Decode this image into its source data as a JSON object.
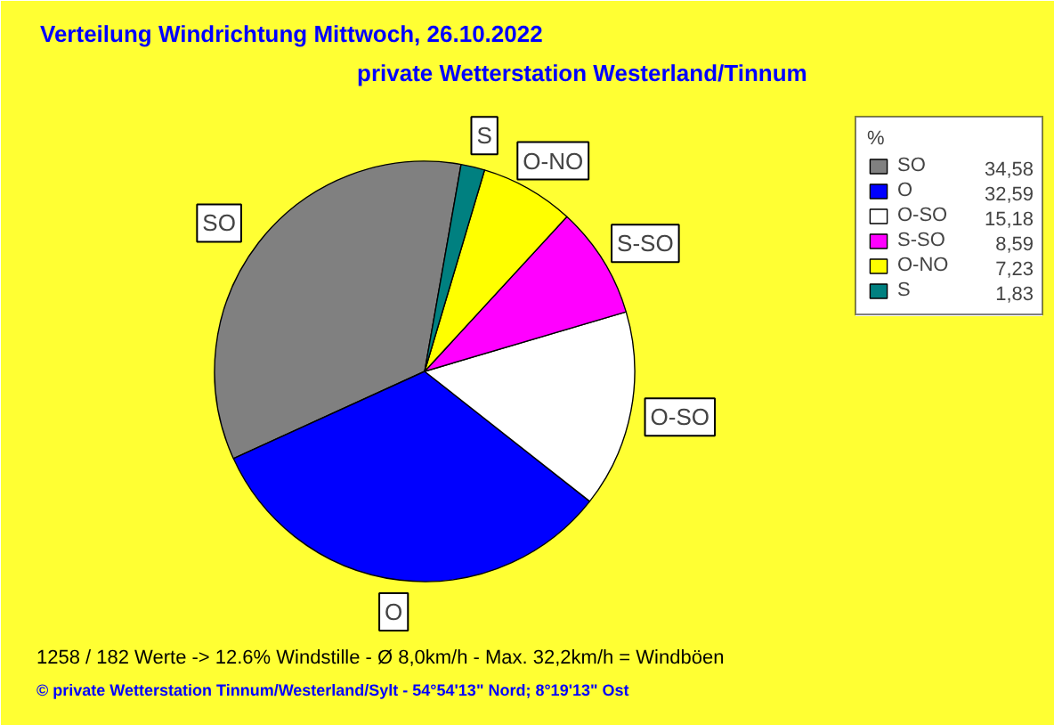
{
  "chart_data": {
    "type": "pie",
    "title": "Verteilung Windrichtung   Mittwoch, 26.10.2022",
    "subtitle": "private Wetterstation Westerland/Tinnum",
    "categories": [
      "SO",
      "O",
      "O-SO",
      "S-SO",
      "O-NO",
      "S"
    ],
    "values": [
      34.58,
      32.59,
      15.18,
      8.59,
      7.23,
      1.83
    ],
    "colors": [
      "#808080",
      "#0000ff",
      "#ffffff",
      "#ff00ff",
      "#ffff00",
      "#008080"
    ],
    "value_labels": [
      "34,58",
      "32,59",
      "15,18",
      "8,59",
      "7,23",
      "1,83"
    ],
    "legend": "top right",
    "legend_title": "%",
    "annotations": [
      "1258 / 182 Werte  -> 12.6% Windstille   -   Ø 8,0km/h  -  Max. 32,2km/h = Windböen",
      "© private Wetterstation Tinnum/Westerland/Sylt   -   54°54'13\" Nord; 8°19'13\" Ost"
    ]
  }
}
